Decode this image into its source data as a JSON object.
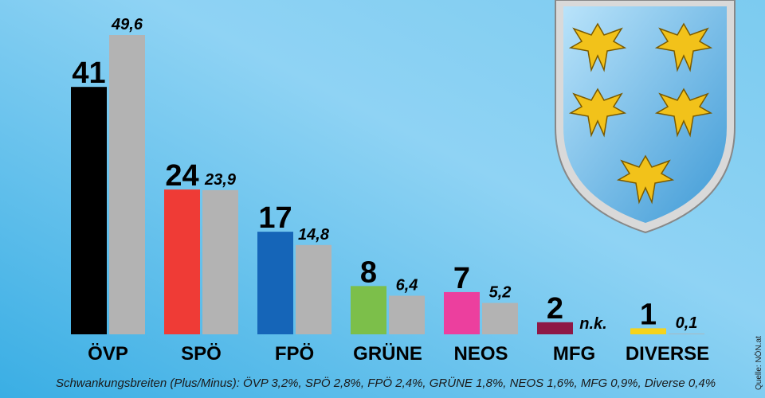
{
  "chart_data": {
    "type": "bar",
    "categories": [
      "ÖVP",
      "SPÖ",
      "FPÖ",
      "GRÜNE",
      "NEOS",
      "MFG",
      "DIVERSE"
    ],
    "series": [
      {
        "colors": [
          "#000000",
          "#ef3b36",
          "#1565b8",
          "#7cbf4a",
          "#ec3f9e",
          "#8e1846",
          "#f5d31c"
        ],
        "values": [
          41,
          24,
          17,
          8,
          7,
          2,
          1
        ]
      },
      {
        "color": "#b3b3b3",
        "values": [
          49.6,
          23.9,
          14.8,
          6.4,
          5.2,
          null,
          0.1
        ],
        "value_labels": [
          "49,6",
          "23,9",
          "14,8",
          "6,4",
          "5,2",
          "n.k.",
          "0,1"
        ]
      }
    ],
    "footnote": "Schwankungsbreiten (Plus/Minus): ÖVP 3,2%, SPÖ 2,8%, FPÖ 2,4%, GRÜNE 1,8%, NEOS 1,6%, MFG 0,9%, Diverse 0,4%",
    "source": "Quelle: NÖN.at"
  }
}
